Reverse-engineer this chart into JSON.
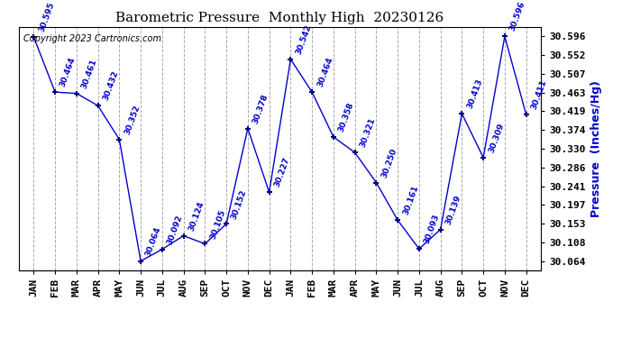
{
  "title": "Barometric Pressure  Monthly High  20230126",
  "ylabel": "Pressure  (Inches/Hg)",
  "copyright": "Copyright 2023 Cartronics.com",
  "months": [
    "JAN",
    "FEB",
    "MAR",
    "APR",
    "MAY",
    "JUN",
    "JUL",
    "AUG",
    "SEP",
    "OCT",
    "NOV",
    "DEC",
    "JAN",
    "FEB",
    "MAR",
    "APR",
    "MAY",
    "JUN",
    "JUL",
    "AUG",
    "SEP",
    "OCT",
    "NOV",
    "DEC"
  ],
  "values": [
    30.595,
    30.464,
    30.461,
    30.432,
    30.352,
    30.064,
    30.092,
    30.124,
    30.105,
    30.152,
    30.378,
    30.227,
    30.542,
    30.464,
    30.358,
    30.321,
    30.25,
    30.161,
    30.093,
    30.139,
    30.413,
    30.309,
    30.596,
    30.411
  ],
  "line_color": "#0000CD",
  "marker_color": "#000080",
  "label_color": "#0000CD",
  "title_color": "#000000",
  "ylabel_color": "#0000CD",
  "copyright_color": "#000000",
  "grid_color": "#AAAAAA",
  "background_color": "#FFFFFF",
  "ylim_min": 30.042,
  "ylim_max": 30.618,
  "yticks": [
    30.064,
    30.108,
    30.153,
    30.197,
    30.241,
    30.286,
    30.33,
    30.374,
    30.419,
    30.463,
    30.507,
    30.552,
    30.596
  ]
}
